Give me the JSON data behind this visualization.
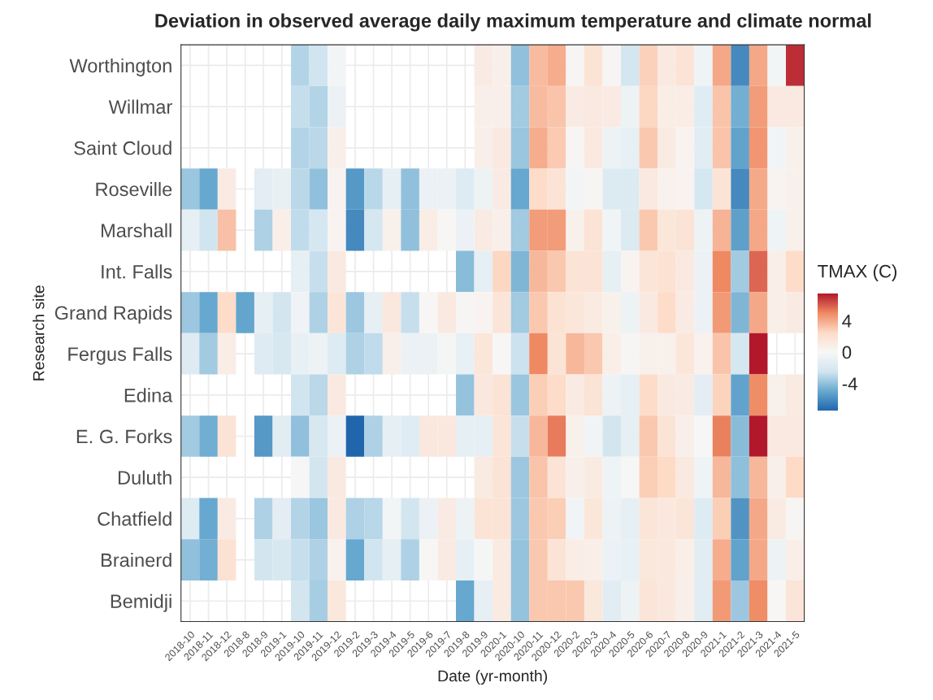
{
  "chart_data": {
    "type": "heatmap",
    "title": "Deviation in observed average daily maximum temperature and climate normal",
    "xlabel": "Date (yr-month)",
    "ylabel": "Research site",
    "clabel": "TMAX (C)",
    "categories": [
      "2018-10",
      "2018-11",
      "2018-12",
      "2018-8",
      "2018-9",
      "2019-1",
      "2019-10",
      "2019-11",
      "2019-12",
      "2019-2",
      "2019-3",
      "2019-4",
      "2019-5",
      "2019-6",
      "2019-7",
      "2019-8",
      "2019-9",
      "2020-1",
      "2020-10",
      "2020-11",
      "2020-12",
      "2020-2",
      "2020-3",
      "2020-4",
      "2020-5",
      "2020-6",
      "2020-7",
      "2020-8",
      "2020-9",
      "2021-1",
      "2021-2",
      "2021-3",
      "2021-4",
      "2021-5"
    ],
    "y_categories": [
      "Worthington",
      "Willmar",
      "Saint Cloud",
      "Roseville",
      "Marshall",
      "Int. Falls",
      "Grand Rapids",
      "Fergus Falls",
      "Edina",
      "E. G. Forks",
      "Duluth",
      "Chatfield",
      "Brainerd",
      "Bemidji"
    ],
    "cells": [
      [
        null,
        null,
        null,
        null,
        null,
        null,
        -3.2,
        -2.5,
        -0.3,
        null,
        null,
        null,
        null,
        null,
        null,
        null,
        1.0,
        0.7,
        -4.0,
        3.5,
        3.9,
        0.2,
        1.8,
        0.2,
        -2.3,
        2.8,
        1.2,
        1.8,
        -0.6,
        4.1,
        -6.2,
        4.1,
        -0.3,
        7.0
      ],
      [
        null,
        null,
        null,
        null,
        null,
        null,
        -2.8,
        -3.2,
        -0.8,
        null,
        null,
        null,
        null,
        null,
        null,
        null,
        0.7,
        0.7,
        -3.6,
        3.5,
        3.2,
        1.0,
        1.2,
        1.0,
        -0.7,
        2.6,
        0.9,
        0.9,
        -1.5,
        3.2,
        -4.7,
        4.4,
        1.2,
        1.2
      ],
      [
        null,
        null,
        null,
        null,
        null,
        null,
        -3.2,
        -3.0,
        0.7,
        null,
        null,
        null,
        null,
        null,
        null,
        null,
        0.7,
        1.2,
        -3.8,
        3.9,
        3.0,
        0.2,
        1.2,
        -0.7,
        -1.0,
        3.1,
        1.1,
        0.3,
        -1.4,
        3.2,
        -5.2,
        4.6,
        -0.4,
        0.6
      ],
      [
        -3.8,
        -5.0,
        1.0,
        null,
        -1.3,
        -0.9,
        -3.0,
        -4.0,
        0.4,
        -5.6,
        -3.1,
        -1.1,
        -4.0,
        -0.8,
        -0.8,
        -1.7,
        -0.7,
        1.0,
        -5.0,
        2.4,
        1.7,
        -0.3,
        0.2,
        -1.8,
        -1.8,
        1.2,
        0.5,
        0.3,
        -2.2,
        1.7,
        -6.2,
        4.0,
        0.3,
        0.6
      ],
      [
        -1.1,
        -2.5,
        3.3,
        null,
        -3.3,
        0.8,
        -2.9,
        -2.2,
        0.3,
        -6.2,
        -2.2,
        0.6,
        -4.0,
        0.9,
        0.1,
        -0.8,
        1.0,
        0.7,
        -3.6,
        4.4,
        4.4,
        0.6,
        1.8,
        -0.4,
        -1.8,
        3.1,
        1.5,
        1.8,
        -0.7,
        3.7,
        -5.3,
        4.1,
        -0.6,
        0.6
      ],
      [
        null,
        null,
        null,
        null,
        null,
        null,
        -1.1,
        -2.7,
        1.2,
        null,
        null,
        null,
        null,
        null,
        null,
        -4.2,
        -1.1,
        2.6,
        -4.4,
        3.6,
        3.1,
        1.7,
        1.7,
        -1.1,
        0.3,
        1.6,
        1.9,
        1.2,
        -0.8,
        5.0,
        -3.6,
        5.8,
        0.8,
        2.4
      ],
      [
        -3.7,
        -5.0,
        2.4,
        -5.1,
        -1.1,
        -2.4,
        -0.5,
        -3.3,
        1.6,
        -3.7,
        -1.1,
        1.3,
        -2.7,
        0.1,
        1.2,
        0.2,
        0.3,
        1.6,
        -3.6,
        3.1,
        1.9,
        1.5,
        1.1,
        0.6,
        -0.7,
        1.2,
        2.4,
        1.0,
        -0.8,
        4.5,
        -4.4,
        4.1,
        0.8,
        1.0
      ],
      [
        -1.6,
        -3.6,
        0.9,
        null,
        -1.6,
        -2.0,
        -1.0,
        -0.7,
        -1.7,
        -3.3,
        -2.9,
        0.7,
        -0.8,
        -0.8,
        -0.2,
        -1.0,
        1.5,
        0.1,
        -2.6,
        5.0,
        1.7,
        3.6,
        3.1,
        0.8,
        0.2,
        0.6,
        0.6,
        1.5,
        0.5,
        3.2,
        -2.2,
        7.5,
        null,
        null
      ],
      [
        null,
        null,
        null,
        null,
        null,
        null,
        -2.5,
        -3.0,
        1.2,
        null,
        null,
        null,
        null,
        null,
        null,
        -3.9,
        1.3,
        1.8,
        -3.8,
        2.9,
        2.4,
        1.0,
        1.8,
        -0.7,
        -1.1,
        2.3,
        1.2,
        1.0,
        -1.3,
        2.7,
        -5.2,
        4.9,
        0.6,
        1.1
      ],
      [
        -3.6,
        -4.8,
        1.8,
        null,
        -5.6,
        -1.4,
        -4.0,
        -2.1,
        -0.8,
        -7.5,
        -3.3,
        -1.1,
        -1.5,
        1.3,
        1.3,
        -1.1,
        -1.1,
        1.6,
        -2.7,
        3.6,
        5.3,
        0.6,
        -0.4,
        -2.4,
        -1.1,
        3.1,
        1.7,
        0.7,
        -0.1,
        5.2,
        -4.2,
        7.5,
        1.2,
        1.2
      ],
      [
        null,
        null,
        null,
        null,
        null,
        null,
        -0.1,
        -2.4,
        1.2,
        null,
        null,
        null,
        null,
        null,
        null,
        null,
        1.1,
        1.8,
        -3.7,
        3.2,
        1.7,
        0.7,
        1.1,
        -0.6,
        -0.1,
        2.9,
        2.5,
        1.2,
        -0.6,
        3.6,
        -4.1,
        3.6,
        0.7,
        2.5
      ],
      [
        -1.7,
        -5.0,
        1.0,
        null,
        -3.3,
        -1.3,
        -3.2,
        -3.8,
        1.2,
        -3.3,
        -3.1,
        -0.3,
        -2.4,
        -0.8,
        1.0,
        -0.7,
        1.7,
        1.7,
        -3.7,
        3.1,
        2.9,
        -0.4,
        1.5,
        -0.7,
        -1.1,
        1.6,
        1.3,
        1.6,
        -1.7,
        2.9,
        -5.8,
        4.1,
        1.1,
        0.2
      ],
      [
        -4.0,
        -4.7,
        1.9,
        null,
        -2.4,
        -2.1,
        -2.7,
        -3.3,
        0.5,
        -5.0,
        -2.5,
        -1.1,
        -3.3,
        0.1,
        1.0,
        -1.1,
        -0.2,
        1.1,
        -3.9,
        3.1,
        1.8,
        0.9,
        0.8,
        -0.8,
        -1.0,
        1.4,
        1.3,
        0.8,
        -1.4,
        3.9,
        -5.2,
        4.1,
        -0.7,
        0.8
      ],
      [
        null,
        null,
        null,
        null,
        null,
        null,
        -2.4,
        -3.5,
        1.4,
        null,
        null,
        null,
        null,
        null,
        null,
        -5.0,
        -1.1,
        1.1,
        -3.9,
        3.1,
        3.1,
        3.1,
        1.4,
        -1.4,
        -0.7,
        1.6,
        1.3,
        0.7,
        -1.4,
        4.5,
        -3.7,
        4.9,
        0.1,
        1.6
      ]
    ],
    "clim": [
      -7.5,
      7.5
    ],
    "cticks": [
      -4,
      0,
      4
    ],
    "grid": true
  }
}
